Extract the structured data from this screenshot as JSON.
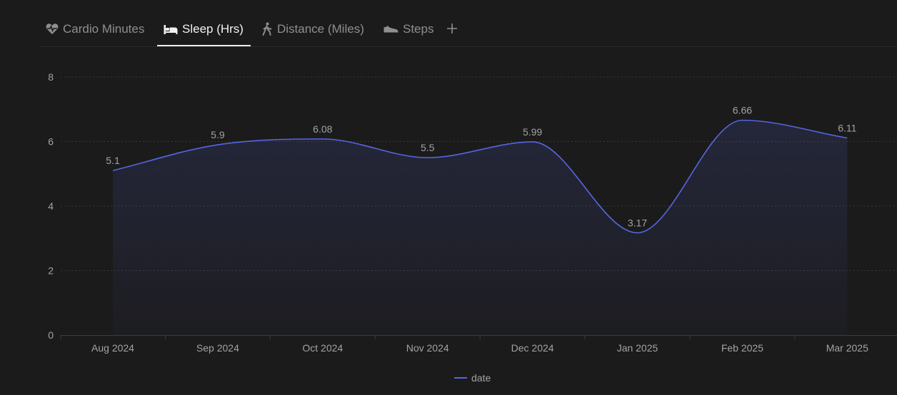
{
  "tabs": [
    {
      "label": "Cardio Minutes",
      "icon": "heart-pulse-icon",
      "active": false
    },
    {
      "label": "Sleep (Hrs)",
      "icon": "bed-icon",
      "active": true
    },
    {
      "label": "Distance (Miles)",
      "icon": "walking-icon",
      "active": false
    },
    {
      "label": "Steps",
      "icon": "shoe-icon",
      "active": false
    }
  ],
  "add_tab_icon": "plus-icon",
  "colors": {
    "line": "#5566e0",
    "text": "#a3a3a3",
    "active_text": "#f2f2f2",
    "grid": "#383838",
    "background": "#1b1b1b"
  },
  "chart_data": {
    "type": "area",
    "categories": [
      "Aug 2024",
      "Sep 2024",
      "Oct 2024",
      "Nov 2024",
      "Dec 2024",
      "Jan 2025",
      "Feb 2025",
      "Mar 2025"
    ],
    "series": [
      {
        "name": "date",
        "values": [
          5.1,
          5.9,
          6.08,
          5.5,
          5.99,
          3.17,
          6.66,
          6.11
        ]
      }
    ],
    "data_labels": [
      "5.1",
      "5.9",
      "6.08",
      "5.5",
      "5.99",
      "3.17",
      "6.66",
      "6.11"
    ],
    "y_ticks": [
      "0",
      "2",
      "4",
      "6",
      "8"
    ],
    "ylim": [
      0,
      8
    ],
    "grid": "horizontal-dotted",
    "legend_position": "bottom-center",
    "title": "",
    "xlabel": "",
    "ylabel": ""
  }
}
